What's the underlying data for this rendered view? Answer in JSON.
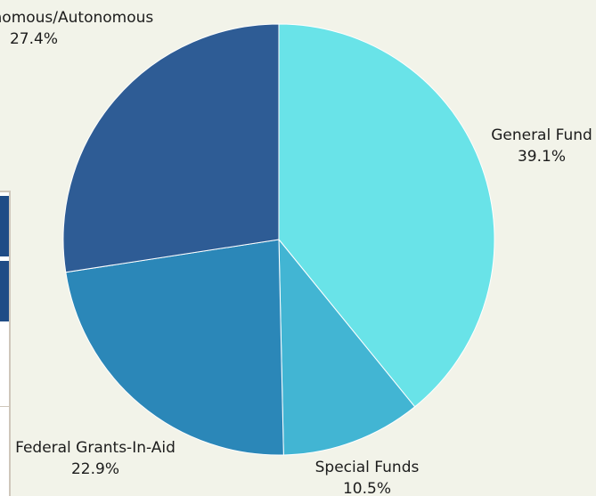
{
  "chart_data": {
    "type": "pie",
    "slices": [
      {
        "name": "General Fund",
        "value": 39.1,
        "label": "39.1%",
        "color": "#69e3e8"
      },
      {
        "name": "Special Funds",
        "value": 10.5,
        "label": "10.5%",
        "color": "#42b5d3"
      },
      {
        "name": "Federal Grants-In-Aid",
        "value": 22.9,
        "label": "22.9%",
        "color": "#2b87b8"
      },
      {
        "name": "Semi-Autonomous/Autonomous",
        "value": 27.4,
        "label": "27.4%",
        "color": "#2e5c95"
      }
    ],
    "start_angle_deg": 0,
    "direction": "clockwise"
  }
}
